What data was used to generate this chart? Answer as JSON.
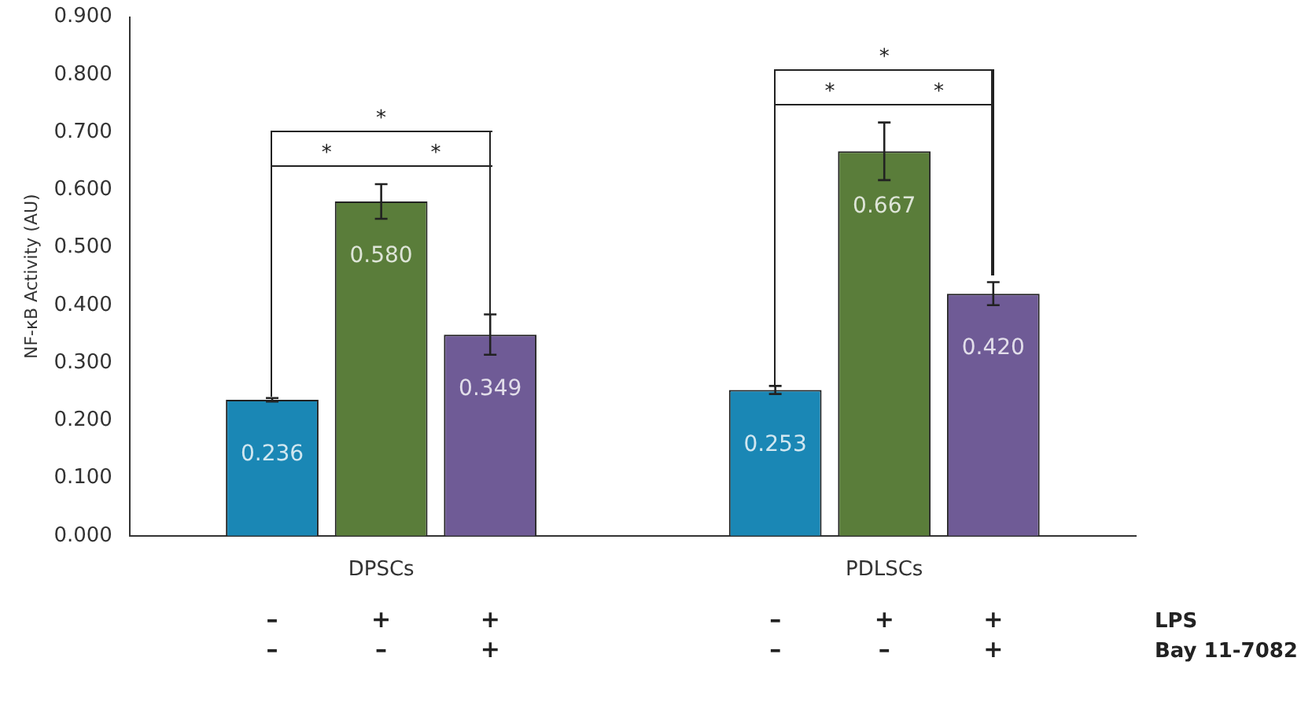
{
  "chart_data": {
    "type": "bar",
    "ylabel": "NF-κB Activity (AU)",
    "categories": [
      "DPSCs",
      "PDLSCs"
    ],
    "series": [
      {
        "color": "#1a87b5",
        "values": [
          0.236,
          0.253
        ],
        "errors": [
          0.003,
          0.007
        ]
      },
      {
        "color": "#5a7d3a",
        "values": [
          0.58,
          0.667
        ],
        "errors": [
          0.03,
          0.05
        ]
      },
      {
        "color": "#6f5b96",
        "values": [
          0.349,
          0.42
        ],
        "errors": [
          0.035,
          0.02
        ]
      }
    ],
    "value_labels": [
      [
        "0.236",
        "0.253"
      ],
      [
        "0.580",
        "0.667"
      ],
      [
        "0.349",
        "0.420"
      ]
    ],
    "ylim": [
      0,
      0.9
    ],
    "yticks": [
      {
        "value": 0,
        "label": "0.000"
      },
      {
        "value": 0.1,
        "label": "0.100"
      },
      {
        "value": 0.2,
        "label": "0.200"
      },
      {
        "value": 0.3,
        "label": "0.300"
      },
      {
        "value": 0.4,
        "label": "0.400"
      },
      {
        "value": 0.5,
        "label": "0.500"
      },
      {
        "value": 0.6,
        "label": "0.600"
      },
      {
        "value": 0.7,
        "label": "0.700"
      },
      {
        "value": 0.8,
        "label": "0.800"
      },
      {
        "value": 0.9,
        "label": "0.900"
      }
    ],
    "grid": false,
    "legend": false,
    "annotations": [
      "*",
      "*",
      "*",
      "*",
      "*",
      "*",
      "–",
      "+",
      "+",
      "–",
      "+",
      "+",
      "LPS",
      "–",
      "–",
      "+",
      "–",
      "–",
      "+",
      "Bay 11-7082"
    ]
  }
}
